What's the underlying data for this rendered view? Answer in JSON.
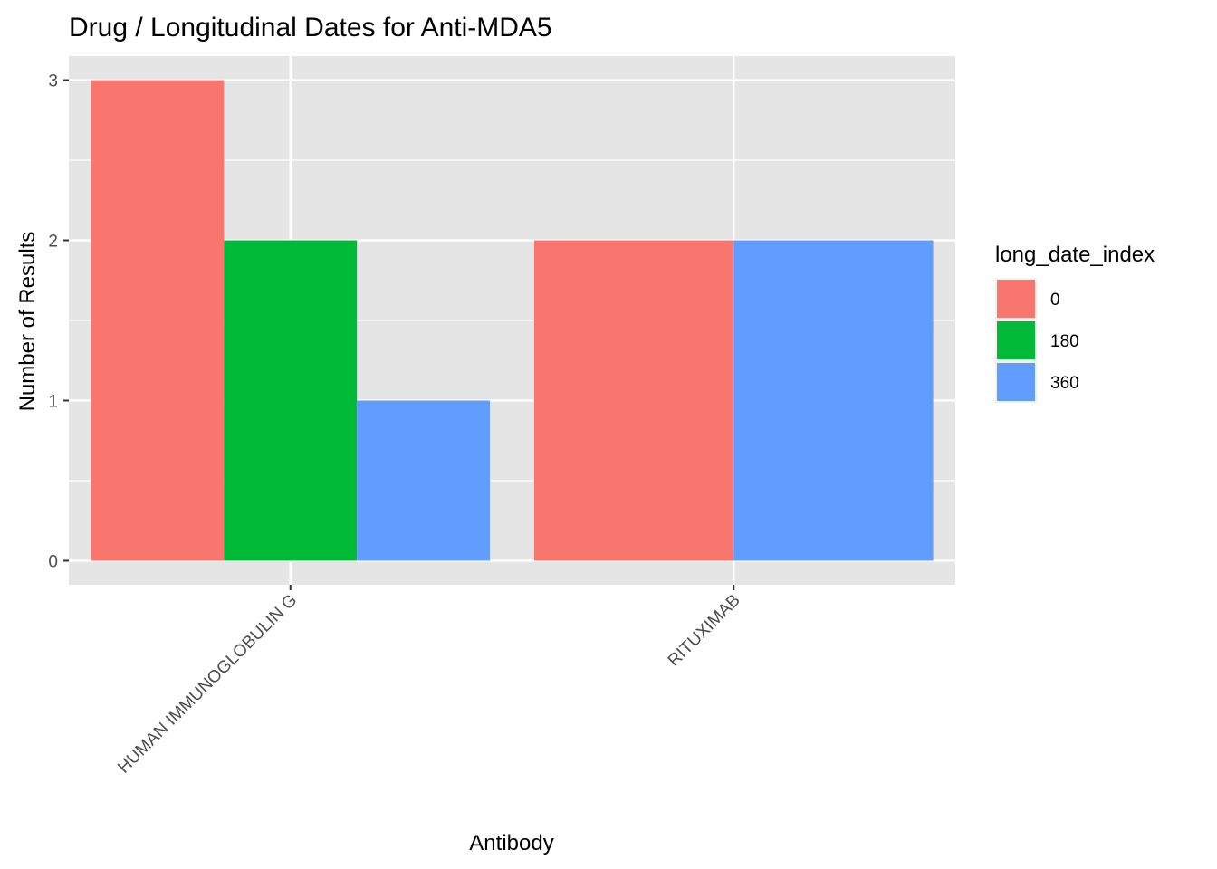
{
  "chart_data": {
    "type": "bar",
    "title": "Drug / Longitudinal Dates for Anti-MDA5",
    "xlabel": "Antibody",
    "ylabel": "Number of Results",
    "ylim": [
      -0.15,
      3.15
    ],
    "y_ticks": [
      0,
      1,
      2,
      3
    ],
    "categories": [
      "HUMAN IMMUNOGLOBULIN G",
      "RITUXIMAB"
    ],
    "legend_title": "long_date_index",
    "legend_position": "right",
    "grid": true,
    "series": [
      {
        "name": "0",
        "color": "#F8766D",
        "values": [
          3,
          2
        ]
      },
      {
        "name": "180",
        "color": "#00BA38",
        "values": [
          2,
          null
        ]
      },
      {
        "name": "360",
        "color": "#619CFF",
        "values": [
          1,
          2
        ]
      }
    ],
    "panel_color": "#E5E5E5",
    "grid_color": "#FFFFFF"
  }
}
